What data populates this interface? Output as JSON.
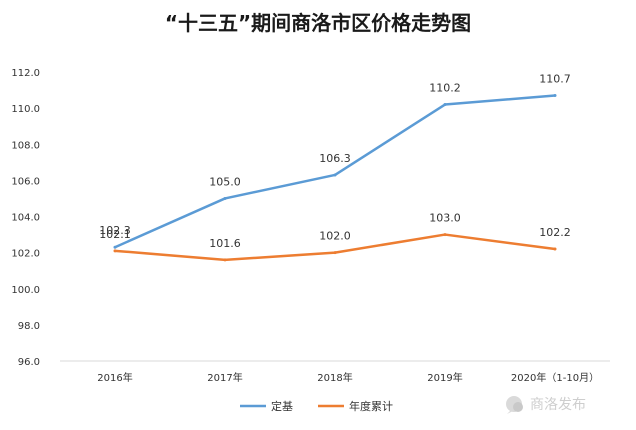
{
  "chart_data": {
    "type": "line",
    "title": "“十三五”期间商洛市区价格走势图",
    "categories": [
      "2016年",
      "2017年",
      "2018年",
      "2019年",
      "2020年（1-10月）"
    ],
    "y_ticks": [
      "112.0",
      "110.0",
      "108.0",
      "106.0",
      "104.0",
      "102.0",
      "100.0",
      "98.0",
      "96.0"
    ],
    "ylim": [
      96,
      112
    ],
    "grid": false,
    "legend_position": "bottom",
    "series": [
      {
        "name": "定基",
        "color": "#5b9bd5",
        "values": [
          102.3,
          105.0,
          106.3,
          110.2,
          110.7
        ],
        "labels": [
          "102.3",
          "105.0",
          "106.3",
          "110.2",
          "110.7"
        ]
      },
      {
        "name": "年度累计",
        "color": "#ed7d31",
        "values": [
          102.1,
          101.6,
          102.0,
          103.0,
          102.2
        ],
        "labels": [
          "102.1",
          "101.6",
          "102.0",
          "103.0",
          "102.2"
        ]
      }
    ]
  },
  "watermark": {
    "text": "商洛发布",
    "icon": "chat-bubble-icon"
  }
}
